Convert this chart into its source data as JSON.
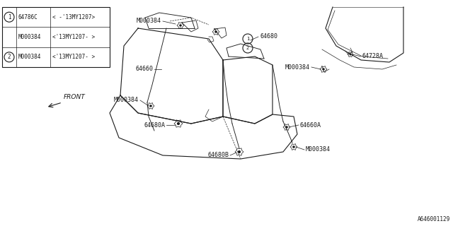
{
  "bg_color": "#ffffff",
  "line_color": "#1a1a1a",
  "fig_width": 6.4,
  "fig_height": 3.2,
  "dpi": 100,
  "table": {
    "row1_part": "64786C",
    "row1_range": "< -'13MY1207>",
    "row1b_part": "M000384",
    "row1b_range": "<'13MY1207- >",
    "row2_part": "M000384",
    "row2_range": "<'13MY1207- >"
  },
  "bottom_code": "A646001129"
}
